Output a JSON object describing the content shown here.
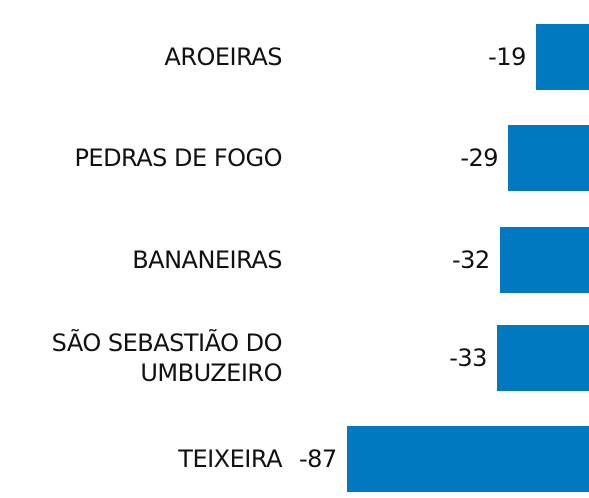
{
  "chart_data": {
    "type": "bar",
    "orientation": "horizontal",
    "categories": [
      "AROEIRAS",
      "PEDRAS DE FOGO",
      "BANANEIRAS",
      "SÃO SEBASTIÃO DO UMBUZEIRO",
      "TEIXEIRA"
    ],
    "values": [
      -19,
      -29,
      -32,
      -33,
      -87
    ],
    "color": "#0079c1"
  }
}
